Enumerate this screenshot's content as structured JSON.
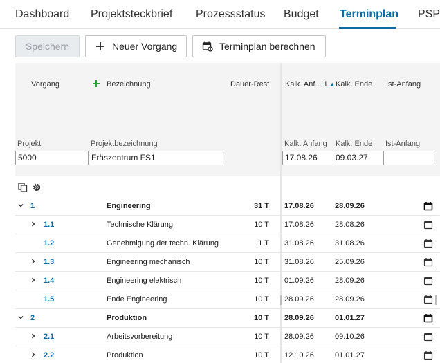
{
  "tabs": [
    {
      "label": "Dashboard",
      "active": false
    },
    {
      "label": "Projektsteckbrief",
      "active": false
    },
    {
      "label": "Prozessstatus",
      "active": false
    },
    {
      "label": "Budget",
      "active": false
    },
    {
      "label": "Terminplan",
      "active": true
    },
    {
      "label": "PSP",
      "active": false
    }
  ],
  "toolbar": {
    "save_label": "Speichern",
    "new_task_label": "Neuer Vorgang",
    "calc_label": "Terminplan berechnen"
  },
  "columns": {
    "vorgang": "Vorgang",
    "bezeichnung": "Bezeichnung",
    "dauer_rest": "Dauer-Rest",
    "kalk_anfang": "Kalk. Anf...",
    "sort_index": "1",
    "kalk_ende": "Kalk. Ende",
    "ist_anfang": "Ist-Anfang"
  },
  "filter": {
    "projekt_label": "Projekt",
    "projektbezeichnung_label": "Projektbezeichnung",
    "kalk_anfang_label": "Kalk. Anfang",
    "kalk_ende_label": "Kalk. Ende",
    "ist_anfang_label": "Ist-Anfang",
    "projekt_value": "5000",
    "projektbezeichnung_value": "Fräszentrum FS1",
    "kalk_anfang_value": "17.08.26",
    "kalk_ende_value": "09.03.27",
    "ist_anfang_value": ""
  },
  "rows": [
    {
      "number": "1",
      "name": "Engineering",
      "duration": "31 T",
      "start": "17.08.26",
      "end": "28.09.26",
      "level": 0,
      "expander": "down",
      "bold": true
    },
    {
      "number": "1.1",
      "name": "Technische Klärung",
      "duration": "10 T",
      "start": "17.08.26",
      "end": "28.08.26",
      "level": 1,
      "expander": "right",
      "bold": false
    },
    {
      "number": "1.2",
      "name": "Genehmigung der techn. Klärung",
      "duration": "1 T",
      "start": "31.08.26",
      "end": "31.08.26",
      "level": 1,
      "expander": "none",
      "bold": false
    },
    {
      "number": "1.3",
      "name": "Engineering mechanisch",
      "duration": "10 T",
      "start": "31.08.26",
      "end": "25.09.26",
      "level": 1,
      "expander": "right",
      "bold": false
    },
    {
      "number": "1.4",
      "name": "Engineering elektrisch",
      "duration": "10 T",
      "start": "01.09.26",
      "end": "28.09.26",
      "level": 1,
      "expander": "right",
      "bold": false
    },
    {
      "number": "1.5",
      "name": "Ende Engineering",
      "duration": "10 T",
      "start": "28.09.26",
      "end": "28.09.26",
      "level": 1,
      "expander": "none",
      "bold": false
    },
    {
      "number": "2",
      "name": "Produktion",
      "duration": "10 T",
      "start": "28.09.26",
      "end": "01.01.27",
      "level": 0,
      "expander": "down",
      "bold": true
    },
    {
      "number": "2.1",
      "name": "Arbeitsvorbereitung",
      "duration": "10 T",
      "start": "28.09.26",
      "end": "09.10.26",
      "level": 1,
      "expander": "right",
      "bold": false
    },
    {
      "number": "2.2",
      "name": "Produktion",
      "duration": "10 T",
      "start": "12.10.26",
      "end": "01.01.27",
      "level": 1,
      "expander": "right",
      "bold": false
    }
  ],
  "icons": {
    "add": "plus-icon",
    "calc": "calendar-gear-icon",
    "copy": "copy-icon",
    "settings": "gear-icon",
    "calendar": "calendar-icon",
    "expand_down": "chevron-down-icon",
    "expand_right": "chevron-right-icon"
  },
  "colors": {
    "accent": "#0a6ea3",
    "add_green": "#2e9e3e"
  }
}
